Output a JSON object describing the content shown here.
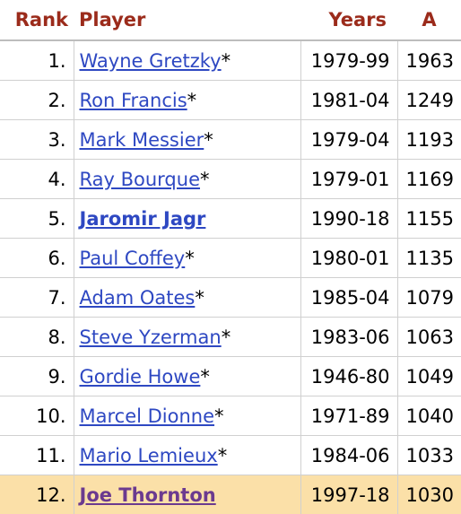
{
  "table": {
    "headers": {
      "rank": "Rank",
      "player": "Player",
      "years": "Years",
      "a": "A"
    },
    "rows": [
      {
        "rank": "1.",
        "player": "Wayne Gretzky",
        "star": "*",
        "years": "1979-99",
        "a": "1963"
      },
      {
        "rank": "2.",
        "player": "Ron Francis",
        "star": "*",
        "years": "1981-04",
        "a": "1249"
      },
      {
        "rank": "3.",
        "player": "Mark Messier",
        "star": "*",
        "years": "1979-04",
        "a": "1193"
      },
      {
        "rank": "4.",
        "player": "Ray Bourque",
        "star": "*",
        "years": "1979-01",
        "a": "1169"
      },
      {
        "rank": "5.",
        "player": "Jaromir Jagr",
        "star": "",
        "years": "1990-18",
        "a": "1155"
      },
      {
        "rank": "6.",
        "player": "Paul Coffey",
        "star": "*",
        "years": "1980-01",
        "a": "1135"
      },
      {
        "rank": "7.",
        "player": "Adam Oates",
        "star": "*",
        "years": "1985-04",
        "a": "1079"
      },
      {
        "rank": "8.",
        "player": "Steve Yzerman",
        "star": "*",
        "years": "1983-06",
        "a": "1063"
      },
      {
        "rank": "9.",
        "player": "Gordie Howe",
        "star": "*",
        "years": "1946-80",
        "a": "1049"
      },
      {
        "rank": "10.",
        "player": "Marcel Dionne",
        "star": "*",
        "years": "1971-89",
        "a": "1040"
      },
      {
        "rank": "11.",
        "player": "Mario Lemieux",
        "star": "*",
        "years": "1984-06",
        "a": "1033"
      },
      {
        "rank": "12.",
        "player": "Joe Thornton",
        "star": "",
        "years": "1997-18",
        "a": "1030"
      }
    ]
  },
  "colors": {
    "header_text": "#9b2b1b",
    "link": "#2e48c2",
    "highlight_row": "#fbe0a8",
    "highlight_link": "#6b3a8f"
  }
}
